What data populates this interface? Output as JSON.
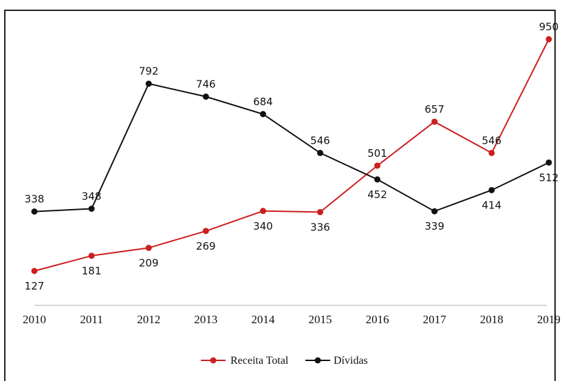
{
  "chart_data": {
    "type": "line",
    "title": "",
    "xlabel": "",
    "ylabel": "",
    "x": [
      "2010",
      "2011",
      "2012",
      "2013",
      "2014",
      "2015",
      "2016",
      "2017",
      "2018",
      "2019"
    ],
    "series": [
      {
        "name": "Receita Total",
        "color": "#cc1f1f",
        "values": [
          127,
          181,
          209,
          269,
          340,
          336,
          501,
          657,
          546,
          950
        ],
        "label_pos": [
          "below",
          "below",
          "below",
          "below",
          "below",
          "below",
          "above",
          "above",
          "above",
          "above"
        ]
      },
      {
        "name": "Dívidas",
        "color": "#111111",
        "values": [
          338,
          348,
          792,
          746,
          684,
          546,
          452,
          339,
          414,
          512
        ],
        "label_pos": [
          "above",
          "above",
          "above",
          "above",
          "above",
          "above",
          "below",
          "below",
          "below",
          "below"
        ]
      }
    ],
    "ylim": [
      127,
      950
    ],
    "grid": false,
    "legend": "bottom-center"
  }
}
